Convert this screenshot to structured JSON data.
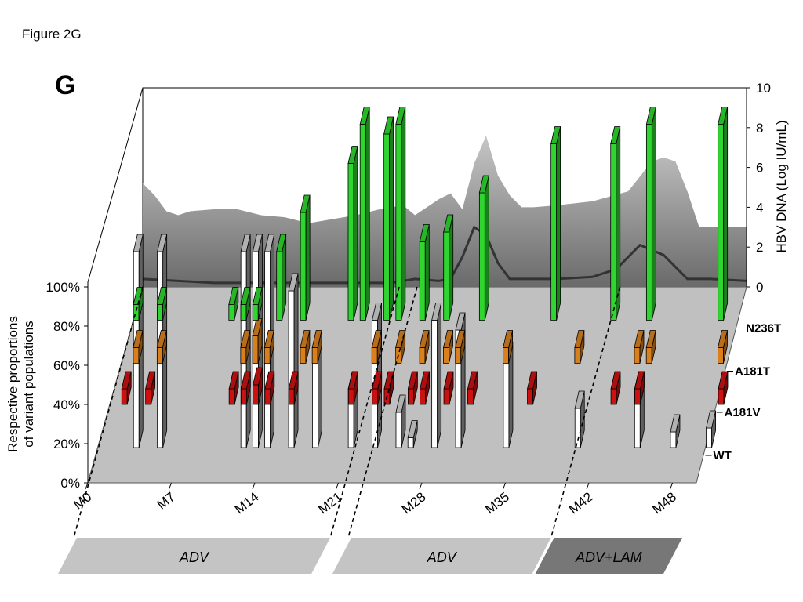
{
  "figure_caption": "Figure 2G",
  "panel_letter": "G",
  "colors": {
    "WT": "#ffffff",
    "A181V": "#cc1111",
    "A181T": "#d9801e",
    "N236T": "#2fd62f",
    "floor": "#c0c0c0",
    "viral_area": "#9a9a9a",
    "viral_line": "#333333",
    "treatment_light": "#c4c4c4",
    "treatment_dark": "#777777"
  },
  "chart_data": {
    "type": "bar",
    "subtype": "3d-stacked-timeline",
    "left_ylabel": "Respective proportions\nof variant populations",
    "left_ticks": [
      "0%",
      "20%",
      "40%",
      "60%",
      "80%",
      "100%"
    ],
    "right_ylabel": "HBV DNA (Log IU/mL)",
    "right_ticks": [
      "0",
      "2",
      "4",
      "6",
      "8",
      "10"
    ],
    "right_ylim": [
      0,
      10
    ],
    "x_ticks": [
      "M0",
      "M7",
      "M14",
      "M21",
      "M28",
      "M35",
      "M42",
      "M48"
    ],
    "x_range_months": [
      0,
      51
    ],
    "rows": [
      "WT",
      "A181V",
      "A181T",
      "N236T"
    ],
    "row_labels": [
      "WT",
      "A181V",
      "A181T",
      "N236T"
    ],
    "series": [
      {
        "name": "WT",
        "points": [
          {
            "month": 3,
            "value": 100
          },
          {
            "month": 5,
            "value": 100
          },
          {
            "month": 12,
            "value": 100
          },
          {
            "month": 13,
            "value": 100
          },
          {
            "month": 14,
            "value": 100
          },
          {
            "month": 16,
            "value": 80
          },
          {
            "month": 18,
            "value": 50
          },
          {
            "month": 21,
            "value": 30
          },
          {
            "month": 23,
            "value": 65
          },
          {
            "month": 25,
            "value": 18
          },
          {
            "month": 26,
            "value": 5
          },
          {
            "month": 28,
            "value": 65
          },
          {
            "month": 30,
            "value": 60
          },
          {
            "month": 34,
            "value": 45
          },
          {
            "month": 40,
            "value": 20
          },
          {
            "month": 45,
            "value": 30
          },
          {
            "month": 48,
            "value": 8
          },
          {
            "month": 51,
            "value": 10
          }
        ]
      },
      {
        "name": "A181V",
        "points": [
          {
            "month": 1,
            "value": 8
          },
          {
            "month": 3,
            "value": 8
          },
          {
            "month": 10,
            "value": 8
          },
          {
            "month": 11,
            "value": 8
          },
          {
            "month": 12,
            "value": 10
          },
          {
            "month": 13,
            "value": 8
          },
          {
            "month": 15,
            "value": 8
          },
          {
            "month": 20,
            "value": 8
          },
          {
            "month": 22,
            "value": 8
          },
          {
            "month": 23,
            "value": 8
          },
          {
            "month": 25,
            "value": 8
          },
          {
            "month": 26,
            "value": 8
          },
          {
            "month": 28,
            "value": 8
          },
          {
            "month": 30,
            "value": 8
          },
          {
            "month": 35,
            "value": 8
          },
          {
            "month": 42,
            "value": 8
          },
          {
            "month": 44,
            "value": 8
          },
          {
            "month": 51,
            "value": 8
          }
        ]
      },
      {
        "name": "A181T",
        "points": [
          {
            "month": 1,
            "value": 8
          },
          {
            "month": 3,
            "value": 8
          },
          {
            "month": 10,
            "value": 8
          },
          {
            "month": 11,
            "value": 14
          },
          {
            "month": 12,
            "value": 8
          },
          {
            "month": 15,
            "value": 8
          },
          {
            "month": 16,
            "value": 8
          },
          {
            "month": 21,
            "value": 8
          },
          {
            "month": 23,
            "value": 8
          },
          {
            "month": 25,
            "value": 8
          },
          {
            "month": 27,
            "value": 8
          },
          {
            "month": 28,
            "value": 8
          },
          {
            "month": 32,
            "value": 8
          },
          {
            "month": 38,
            "value": 8
          },
          {
            "month": 43,
            "value": 8
          },
          {
            "month": 44,
            "value": 8
          },
          {
            "month": 50,
            "value": 8
          }
        ]
      },
      {
        "name": "N236T",
        "points": [
          {
            "month": 0,
            "value": 8
          },
          {
            "month": 2,
            "value": 8
          },
          {
            "month": 8,
            "value": 8
          },
          {
            "month": 9,
            "value": 8
          },
          {
            "month": 10,
            "value": 8
          },
          {
            "month": 12,
            "value": 35
          },
          {
            "month": 14,
            "value": 55
          },
          {
            "month": 18,
            "value": 80
          },
          {
            "month": 19,
            "value": 100
          },
          {
            "month": 21,
            "value": 95
          },
          {
            "month": 22,
            "value": 100
          },
          {
            "month": 24,
            "value": 40
          },
          {
            "month": 26,
            "value": 45
          },
          {
            "month": 29,
            "value": 65
          },
          {
            "month": 35,
            "value": 90
          },
          {
            "month": 40,
            "value": 90
          },
          {
            "month": 43,
            "value": 100
          },
          {
            "month": 49,
            "value": 100
          }
        ]
      }
    ],
    "hbv_dna_area": [
      {
        "month": 0,
        "value": 5.2
      },
      {
        "month": 1,
        "value": 4.6
      },
      {
        "month": 2,
        "value": 3.8
      },
      {
        "month": 3,
        "value": 3.6
      },
      {
        "month": 4,
        "value": 3.8
      },
      {
        "month": 6,
        "value": 3.9
      },
      {
        "month": 8,
        "value": 3.9
      },
      {
        "month": 10,
        "value": 3.6
      },
      {
        "month": 12,
        "value": 3.5
      },
      {
        "month": 14,
        "value": 3.2
      },
      {
        "month": 16,
        "value": 3.4
      },
      {
        "month": 18,
        "value": 3.6
      },
      {
        "month": 20,
        "value": 3.9
      },
      {
        "month": 22,
        "value": 4.1
      },
      {
        "month": 23,
        "value": 3.6
      },
      {
        "month": 24,
        "value": 4.0
      },
      {
        "month": 25,
        "value": 4.4
      },
      {
        "month": 26,
        "value": 4.7
      },
      {
        "month": 27,
        "value": 3.9
      },
      {
        "month": 28,
        "value": 6.2
      },
      {
        "month": 29,
        "value": 7.6
      },
      {
        "month": 30,
        "value": 5.6
      },
      {
        "month": 31,
        "value": 4.6
      },
      {
        "month": 32,
        "value": 4.0
      },
      {
        "month": 33,
        "value": 4.0
      },
      {
        "month": 35,
        "value": 4.1
      },
      {
        "month": 38,
        "value": 4.3
      },
      {
        "month": 41,
        "value": 4.8
      },
      {
        "month": 43,
        "value": 6.3
      },
      {
        "month": 44,
        "value": 6.5
      },
      {
        "month": 45,
        "value": 6.3
      },
      {
        "month": 46,
        "value": 4.8
      },
      {
        "month": 47,
        "value": 3.0
      },
      {
        "month": 51,
        "value": 3.0
      }
    ],
    "hbv_dna_line": [
      {
        "month": 0,
        "value": 0.4
      },
      {
        "month": 3,
        "value": 0.3
      },
      {
        "month": 6,
        "value": 0.2
      },
      {
        "month": 10,
        "value": 0.2
      },
      {
        "month": 14,
        "value": 0.2
      },
      {
        "month": 18,
        "value": 0.2
      },
      {
        "month": 21,
        "value": 0.2
      },
      {
        "month": 23,
        "value": 0.4
      },
      {
        "month": 25,
        "value": 0.3
      },
      {
        "month": 26,
        "value": 0.4
      },
      {
        "month": 27,
        "value": 1.5
      },
      {
        "month": 28,
        "value": 3.0
      },
      {
        "month": 29,
        "value": 2.6
      },
      {
        "month": 30,
        "value": 1.2
      },
      {
        "month": 31,
        "value": 0.4
      },
      {
        "month": 35,
        "value": 0.4
      },
      {
        "month": 38,
        "value": 0.5
      },
      {
        "month": 40,
        "value": 0.9
      },
      {
        "month": 42,
        "value": 2.1
      },
      {
        "month": 44,
        "value": 1.6
      },
      {
        "month": 46,
        "value": 0.4
      },
      {
        "month": 48,
        "value": 0.4
      },
      {
        "month": 51,
        "value": 0.3
      }
    ],
    "treatments": [
      {
        "label": "ADV",
        "start_month": 0,
        "end_month": 21.5,
        "shade": "light"
      },
      {
        "label": "ADV",
        "start_month": 23,
        "end_month": 40,
        "shade": "light"
      },
      {
        "label": "ADV+LAM",
        "start_month": 40,
        "end_month": 51,
        "shade": "dark"
      }
    ],
    "switch_points_months": [
      0,
      21.5,
      23,
      40
    ]
  }
}
